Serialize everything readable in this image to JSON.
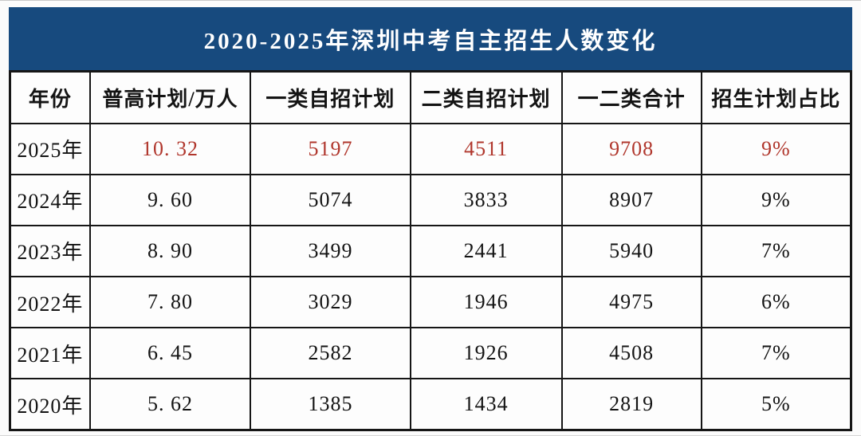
{
  "title": "2020-2025年深圳中考自主招生人数变化",
  "colors": {
    "title_bg": "#174A7E",
    "title_text": "#FFFFFF",
    "body_text": "#141414",
    "highlight_text": "#B0362C",
    "border": "#161616"
  },
  "table": {
    "columns": [
      "年份",
      "普高计划/万人",
      "一类自招计划",
      "二类自招计划",
      "一二类合计",
      "招生计划占比"
    ],
    "rows": [
      {
        "year": "2025年",
        "values": [
          "10. 32",
          "5197",
          "4511",
          "9708",
          "9%"
        ],
        "highlight": true
      },
      {
        "year": "2024年",
        "values": [
          "9. 60",
          "5074",
          "3833",
          "8907",
          "9%"
        ],
        "highlight": false
      },
      {
        "year": "2023年",
        "values": [
          "8. 90",
          "3499",
          "2441",
          "5940",
          "7%"
        ],
        "highlight": false
      },
      {
        "year": "2022年",
        "values": [
          "7. 80",
          "3029",
          "1946",
          "4975",
          "6%"
        ],
        "highlight": false
      },
      {
        "year": "2021年",
        "values": [
          "6. 45",
          "2582",
          "1926",
          "4508",
          "7%"
        ],
        "highlight": false
      },
      {
        "year": "2020年",
        "values": [
          "5. 62",
          "1385",
          "1434",
          "2819",
          "5%"
        ],
        "highlight": false
      }
    ]
  },
  "chart_data": {
    "type": "table",
    "title": "2020-2025年深圳中考自主招生人数变化",
    "columns": [
      "年份",
      "普高计划/万人",
      "一类自招计划",
      "二类自招计划",
      "一二类合计",
      "招生计划占比"
    ],
    "rows": [
      [
        "2025年",
        10.32,
        5197,
        4511,
        9708,
        "9%"
      ],
      [
        "2024年",
        9.6,
        5074,
        3833,
        8907,
        "9%"
      ],
      [
        "2023年",
        8.9,
        3499,
        2441,
        5940,
        "7%"
      ],
      [
        "2022年",
        7.8,
        3029,
        1946,
        4975,
        "6%"
      ],
      [
        "2021年",
        6.45,
        2582,
        1926,
        4508,
        "7%"
      ],
      [
        "2020年",
        5.62,
        1385,
        1434,
        2819,
        "5%"
      ]
    ],
    "notes": "2025 row rendered in red highlight color"
  }
}
